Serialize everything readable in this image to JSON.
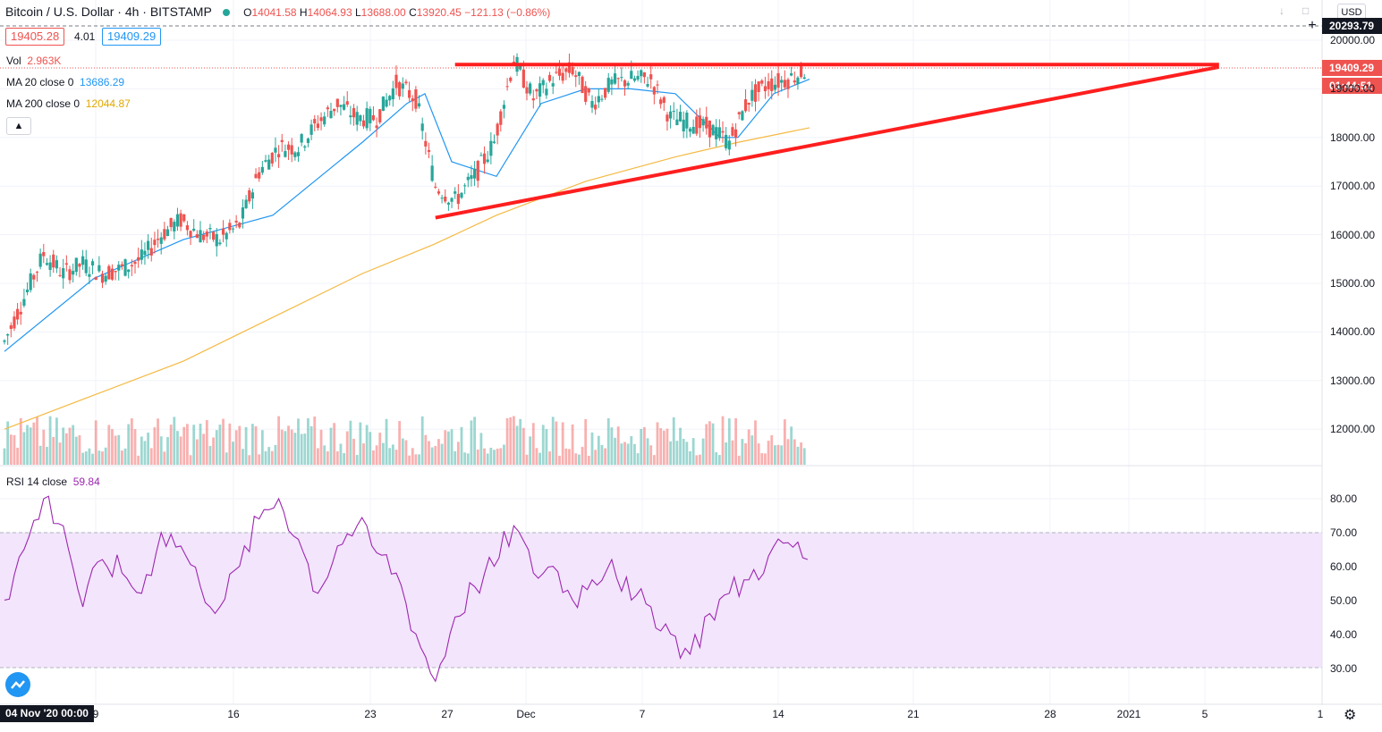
{
  "header": {
    "title": "Bitcoin / U.S. Dollar · 4h · BITSTAMP",
    "ohlc": [
      {
        "k": "O",
        "v": "14041.58"
      },
      {
        "k": "H",
        "v": "14064.93"
      },
      {
        "k": "L",
        "v": "13688.00"
      },
      {
        "k": "C",
        "v": "13920.45"
      }
    ],
    "change": "−121.13 (−0.86%)",
    "bid": "19405.28",
    "spread": "4.01",
    "ask": "19409.29",
    "currency": "USD"
  },
  "legend": {
    "vol_label": "Vol",
    "vol_value": "2.963K",
    "ma20_label": "MA 20 close 0",
    "ma20_value": "13686.29",
    "ma200_label": "MA 200 close 0",
    "ma200_value": "12044.87",
    "rsi_label": "RSI 14 close",
    "rsi_value": "59.84"
  },
  "price_tags": {
    "high_line": "20293.79",
    "last_price": "19409.29",
    "countdown": "01:44:51"
  },
  "axis": {
    "price_ticks": [
      "20000.00",
      "19000.00",
      "18000.00",
      "17000.00",
      "16000.00",
      "15000.00",
      "14000.00",
      "13000.00",
      "12000.00"
    ],
    "rsi_ticks": [
      "80.00",
      "70.00",
      "60.00",
      "50.00",
      "40.00",
      "30.00"
    ],
    "x_labels": [
      "9",
      "16",
      "23",
      "27",
      "Dec",
      "7",
      "14",
      "21",
      "28",
      "2021",
      "5",
      "1"
    ],
    "crosshair_date": "04 Nov '20  00:00"
  },
  "colors": {
    "up": "#26a69a",
    "down": "#ef5350",
    "ma20": "#2196f3",
    "ma200": "#f5b942",
    "rsi": "#9c27b0",
    "rsi_band": "#f3e5fc",
    "trendline": "#ff1e1e"
  },
  "chart_data": [
    {
      "type": "candlestick",
      "title": "Bitcoin / U.S. Dollar · 4h · BITSTAMP",
      "ylim": [
        11300,
        20400
      ],
      "x_range": [
        "2020-11-04",
        "2021-01-07"
      ],
      "close_path": [
        [
          "2020-11-04",
          13800
        ],
        [
          "2020-11-05",
          14700
        ],
        [
          "2020-11-06",
          15600
        ],
        [
          "2020-11-07",
          15200
        ],
        [
          "2020-11-08",
          15400
        ],
        [
          "2020-11-09",
          15200
        ],
        [
          "2020-11-10",
          15300
        ],
        [
          "2020-11-11",
          15500
        ],
        [
          "2020-11-12",
          16000
        ],
        [
          "2020-11-13",
          16300
        ],
        [
          "2020-11-14",
          16000
        ],
        [
          "2020-11-15",
          15900
        ],
        [
          "2020-11-16",
          16200
        ],
        [
          "2020-11-17",
          17300
        ],
        [
          "2020-11-18",
          17800
        ],
        [
          "2020-11-19",
          17800
        ],
        [
          "2020-11-20",
          18300
        ],
        [
          "2020-11-21",
          18700
        ],
        [
          "2020-11-22",
          18400
        ],
        [
          "2020-11-23",
          18400
        ],
        [
          "2020-11-24",
          19100
        ],
        [
          "2020-11-25",
          18800
        ],
        [
          "2020-11-26",
          17000
        ],
        [
          "2020-11-27",
          16700
        ],
        [
          "2020-11-28",
          17200
        ],
        [
          "2020-11-29",
          17900
        ],
        [
          "2020-11-30",
          19600
        ],
        [
          "2020-12-01",
          18800
        ],
        [
          "2020-12-02",
          19200
        ],
        [
          "2020-12-03",
          19400
        ],
        [
          "2020-12-04",
          18700
        ],
        [
          "2020-12-05",
          19100
        ],
        [
          "2020-12-06",
          19200
        ],
        [
          "2020-12-07",
          19200
        ],
        [
          "2020-12-08",
          18400
        ],
        [
          "2020-12-09",
          18300
        ],
        [
          "2020-12-10",
          18200
        ],
        [
          "2020-12-11",
          17900
        ],
        [
          "2020-12-12",
          18800
        ],
        [
          "2020-12-13",
          19100
        ],
        [
          "2020-12-14",
          19200
        ],
        [
          "2020-12-15",
          19400
        ]
      ],
      "series": [
        {
          "name": "MA 20 close 0",
          "values": [
            [
              0,
              13600
            ],
            [
              10,
              15100
            ],
            [
              20,
              15900
            ],
            [
              30,
              16400
            ],
            [
              40,
              17900
            ],
            [
              45,
              18700
            ],
            [
              47,
              18900
            ],
            [
              50,
              17500
            ],
            [
              55,
              17200
            ],
            [
              60,
              18700
            ],
            [
              65,
              19000
            ],
            [
              70,
              19000
            ],
            [
              75,
              18900
            ],
            [
              80,
              18000
            ],
            [
              82,
              18000
            ],
            [
              86,
              18900
            ],
            [
              90,
              19200
            ]
          ]
        },
        {
          "name": "MA 200 close 0",
          "values": [
            [
              0,
              12000
            ],
            [
              10,
              12700
            ],
            [
              20,
              13400
            ],
            [
              30,
              14300
            ],
            [
              40,
              15200
            ],
            [
              48,
              15800
            ],
            [
              55,
              16400
            ],
            [
              65,
              17100
            ],
            [
              75,
              17600
            ],
            [
              82,
              17900
            ],
            [
              90,
              18200
            ]
          ]
        }
      ],
      "trendlines": [
        {
          "from": [
            "2020-11-27",
            19500
          ],
          "to": [
            "2021-01-05",
            19500
          ]
        },
        {
          "from": [
            "2020-11-26",
            16350
          ],
          "to": [
            "2021-01-05",
            19450
          ]
        }
      ],
      "volume_last": "2.963K"
    },
    {
      "type": "line",
      "title": "RSI 14 close",
      "ylim": [
        25,
        85
      ],
      "band": [
        30,
        70
      ],
      "values": [
        50,
        65,
        80,
        72,
        48,
        62,
        58,
        52,
        70,
        66,
        54,
        48,
        60,
        74,
        80,
        68,
        52,
        66,
        72,
        64,
        58,
        40,
        26,
        45,
        54,
        60,
        72,
        58,
        60,
        50,
        56,
        62,
        50,
        48,
        40,
        34,
        46,
        52,
        56,
        63,
        67,
        62
      ]
    }
  ]
}
